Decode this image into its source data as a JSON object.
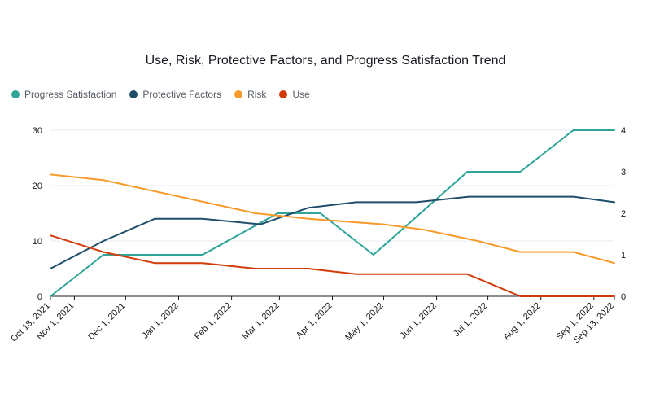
{
  "chart_data": {
    "type": "line",
    "title": "Use, Risk, Protective Factors, and Progress Satisfaction Trend",
    "xlabel": "",
    "ylabel": "",
    "x": [
      "2021-10-18",
      "2021-11-01",
      "2021-12-01",
      "2022-01-01",
      "2022-02-01",
      "2022-03-01",
      "2022-04-01",
      "2022-05-01",
      "2022-06-01",
      "2022-07-01",
      "2022-08-01",
      "2022-09-01",
      "2022-09-13"
    ],
    "x_tick_labels": [
      "Oct 18, 2021",
      "Nov 1, 2021",
      "Dec 1, 2021",
      "Jan 1, 2022",
      "Feb 1, 2022",
      "Mar 1, 2022",
      "Apr 1, 2022",
      "May 1, 2022",
      "Jun 1, 2022",
      "Jul 1, 2022",
      "Aug 1, 2022",
      "Sep 1, 2022",
      "Sep 13, 2022"
    ],
    "left_axis": {
      "ylim": [
        0,
        30
      ],
      "ticks": [
        "0",
        "10",
        "20",
        "30"
      ]
    },
    "right_axis": {
      "ylim": [
        0,
        4
      ],
      "ticks": [
        "0",
        "1",
        "2",
        "3",
        "4"
      ]
    },
    "grid": true,
    "legend_position": "top-left",
    "series": [
      {
        "name": "Progress Satisfaction",
        "color": "#2ea597",
        "axis": "right",
        "points": [
          [
            "2021-10-18",
            0
          ],
          [
            "2021-11-18",
            1
          ],
          [
            "2022-01-15",
            1
          ],
          [
            "2022-02-28",
            2
          ],
          [
            "2022-03-25",
            2
          ],
          [
            "2022-04-25",
            1
          ],
          [
            "2022-06-19",
            3
          ],
          [
            "2022-07-20",
            3
          ],
          [
            "2022-08-20",
            4
          ],
          [
            "2022-09-13",
            4
          ]
        ]
      },
      {
        "name": "Protective Factors",
        "color": "#1f4e6b",
        "axis": "left",
        "points": [
          [
            "2021-10-18",
            5
          ],
          [
            "2021-11-18",
            10
          ],
          [
            "2021-12-18",
            14
          ],
          [
            "2022-01-15",
            14
          ],
          [
            "2022-02-18",
            13
          ],
          [
            "2022-03-18",
            16
          ],
          [
            "2022-04-15",
            17
          ],
          [
            "2022-05-20",
            17
          ],
          [
            "2022-06-20",
            18
          ],
          [
            "2022-07-20",
            18
          ],
          [
            "2022-08-20",
            18
          ],
          [
            "2022-09-13",
            17
          ]
        ]
      },
      {
        "name": "Risk",
        "color": "#f89a2a",
        "axis": "left",
        "points": [
          [
            "2021-10-18",
            22
          ],
          [
            "2021-11-18",
            21
          ],
          [
            "2022-02-15",
            15
          ],
          [
            "2022-03-18",
            14
          ],
          [
            "2022-05-01",
            13
          ],
          [
            "2022-05-25",
            12
          ],
          [
            "2022-06-25",
            10
          ],
          [
            "2022-07-20",
            8
          ],
          [
            "2022-08-20",
            8
          ],
          [
            "2022-09-13",
            6
          ]
        ]
      },
      {
        "name": "Use",
        "color": "#d13b0a",
        "axis": "left",
        "points": [
          [
            "2021-10-18",
            11
          ],
          [
            "2021-11-18",
            8
          ],
          [
            "2021-12-18",
            6
          ],
          [
            "2022-01-15",
            6
          ],
          [
            "2022-02-15",
            5
          ],
          [
            "2022-03-18",
            5
          ],
          [
            "2022-04-15",
            4
          ],
          [
            "2022-05-15",
            4
          ],
          [
            "2022-06-19",
            4
          ],
          [
            "2022-07-20",
            0
          ],
          [
            "2022-08-20",
            0
          ],
          [
            "2022-09-13",
            0
          ]
        ]
      }
    ]
  }
}
